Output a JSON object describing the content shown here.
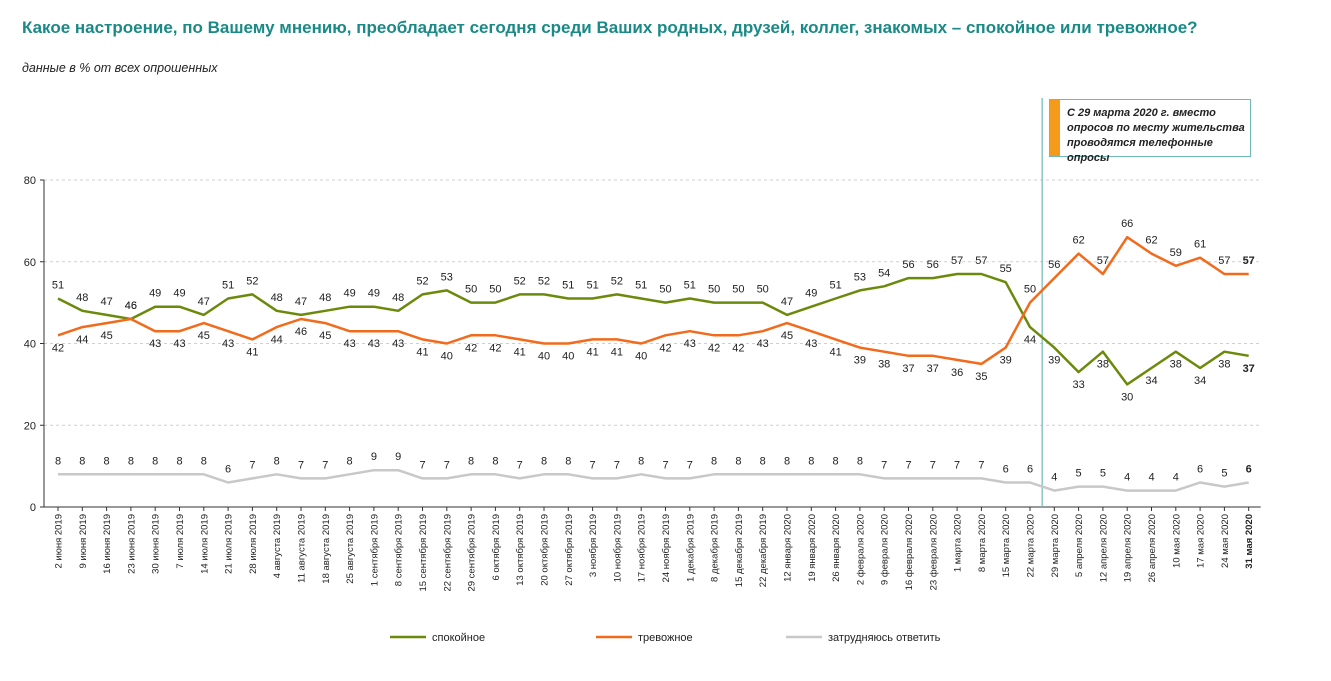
{
  "title": "Какое настроение, по Вашему мнению, преобладает сегодня среди Ваших родных, друзей, коллег, знакомых – спокойное или тревожное?",
  "subtitle": "данные в % от всех опрошенных",
  "note": "С 29 марта 2020 г. вместо\nопросов по месту жительства\nпроводятся телефонные опросы",
  "colors": {
    "calm": "#6b8a0c",
    "anxious": "#f26b1d",
    "unsure": "#c8c8c8",
    "note_accent": "#f59a1b",
    "divider": "#6fb8b8",
    "title": "#1a8a86"
  },
  "chart_data": {
    "type": "line",
    "ylim": [
      0,
      80
    ],
    "yticks": [
      0,
      20,
      40,
      60,
      80
    ],
    "grid": "horizontal dashed",
    "legend_position": "bottom",
    "categories": [
      "2 июня 2019",
      "9 июня 2019",
      "16 июня 2019",
      "23 июня 2019",
      "30 июня 2019",
      "7 июля 2019",
      "14 июля 2019",
      "21 июля 2019",
      "28 июля 2019",
      "4 августа 2019",
      "11 августа 2019",
      "18 августа 2019",
      "25 августа 2019",
      "1 сентября 2019",
      "8 сентября 2019",
      "15 сентября 2019",
      "22 сентября 2019",
      "29 сентября 2019",
      "6 октября 2019",
      "13 октября 2019",
      "20 октября 2019",
      "27 октября 2019",
      "3 ноября 2019",
      "10 ноября 2019",
      "17 ноября 2019",
      "24 ноября 2019",
      "1 декабря 2019",
      "8 декабря 2019",
      "15 декабря 2019",
      "22 декабря 2019",
      "12 января 2020",
      "19 января 2020",
      "26 января 2020",
      "2 февраля 2020",
      "9 февраля 2020",
      "16 февраля 2020",
      "23 февраля 2020",
      "1 марта 2020",
      "8 марта 2020",
      "15 марта 2020",
      "22 марта 2020",
      "29 марта 2020",
      "5 апреля 2020",
      "12 апреля 2020",
      "19 апреля 2020",
      "26 апреля 2020",
      "10 мая 2020",
      "17 мая 2020",
      "24 мая 2020",
      "31 мая 2020"
    ],
    "series": [
      {
        "name": "спокойное",
        "key": "calm",
        "values": [
          51,
          48,
          47,
          46,
          49,
          49,
          47,
          51,
          52,
          48,
          47,
          48,
          49,
          49,
          48,
          52,
          53,
          50,
          50,
          52,
          52,
          51,
          51,
          52,
          51,
          50,
          51,
          50,
          50,
          50,
          47,
          49,
          51,
          53,
          54,
          56,
          56,
          57,
          57,
          55,
          44,
          39,
          33,
          38,
          30,
          34,
          38,
          34,
          38,
          37
        ],
        "labels": [
          51,
          48,
          47,
          46,
          49,
          49,
          47,
          51,
          52,
          48,
          47,
          48,
          49,
          49,
          48,
          52,
          53,
          50,
          50,
          52,
          52,
          51,
          51,
          52,
          51,
          50,
          51,
          50,
          50,
          50,
          47,
          49,
          51,
          53,
          54,
          56,
          56,
          57,
          57,
          55,
          44,
          39,
          33,
          38,
          30,
          34,
          38,
          34,
          38,
          37
        ]
      },
      {
        "name": "тревожное",
        "key": "anxious",
        "values": [
          42,
          44,
          45,
          46,
          43,
          43,
          45,
          43,
          41,
          44,
          46,
          45,
          43,
          43,
          43,
          41,
          40,
          42,
          42,
          41,
          40,
          40,
          41,
          41,
          40,
          42,
          43,
          42,
          42,
          43,
          45,
          43,
          41,
          39,
          38,
          37,
          37,
          36,
          35,
          39,
          50,
          56,
          62,
          57,
          66,
          62,
          59,
          61,
          57,
          57
        ],
        "labels": [
          42,
          44,
          45,
          46,
          43,
          43,
          45,
          43,
          41,
          44,
          46,
          45,
          43,
          43,
          43,
          41,
          40,
          42,
          42,
          41,
          40,
          40,
          41,
          41,
          40,
          42,
          43,
          42,
          42,
          43,
          45,
          43,
          41,
          39,
          38,
          37,
          37,
          36,
          35,
          39,
          50,
          56,
          62,
          57,
          66,
          62,
          59,
          61,
          57,
          57
        ]
      },
      {
        "name": "затрудняюсь ответить",
        "key": "unsure",
        "values": [
          8,
          8,
          8,
          8,
          8,
          8,
          8,
          6,
          7,
          8,
          7,
          7,
          8,
          9,
          9,
          7,
          7,
          8,
          8,
          7,
          8,
          8,
          7,
          7,
          8,
          7,
          7,
          8,
          8,
          8,
          8,
          8,
          8,
          8,
          7,
          7,
          7,
          7,
          7,
          6,
          6,
          4,
          5,
          5,
          4,
          4,
          4,
          6,
          5,
          6
        ],
        "labels": [
          8,
          8,
          8,
          8,
          8,
          8,
          8,
          6,
          7,
          8,
          7,
          7,
          8,
          9,
          9,
          7,
          7,
          8,
          8,
          7,
          8,
          8,
          7,
          7,
          8,
          7,
          7,
          8,
          8,
          8,
          8,
          8,
          8,
          8,
          7,
          7,
          7,
          7,
          7,
          6,
          6,
          4,
          5,
          5,
          4,
          4,
          4,
          6,
          5,
          6
        ]
      }
    ],
    "divider_after_category": "22 марта 2020"
  }
}
